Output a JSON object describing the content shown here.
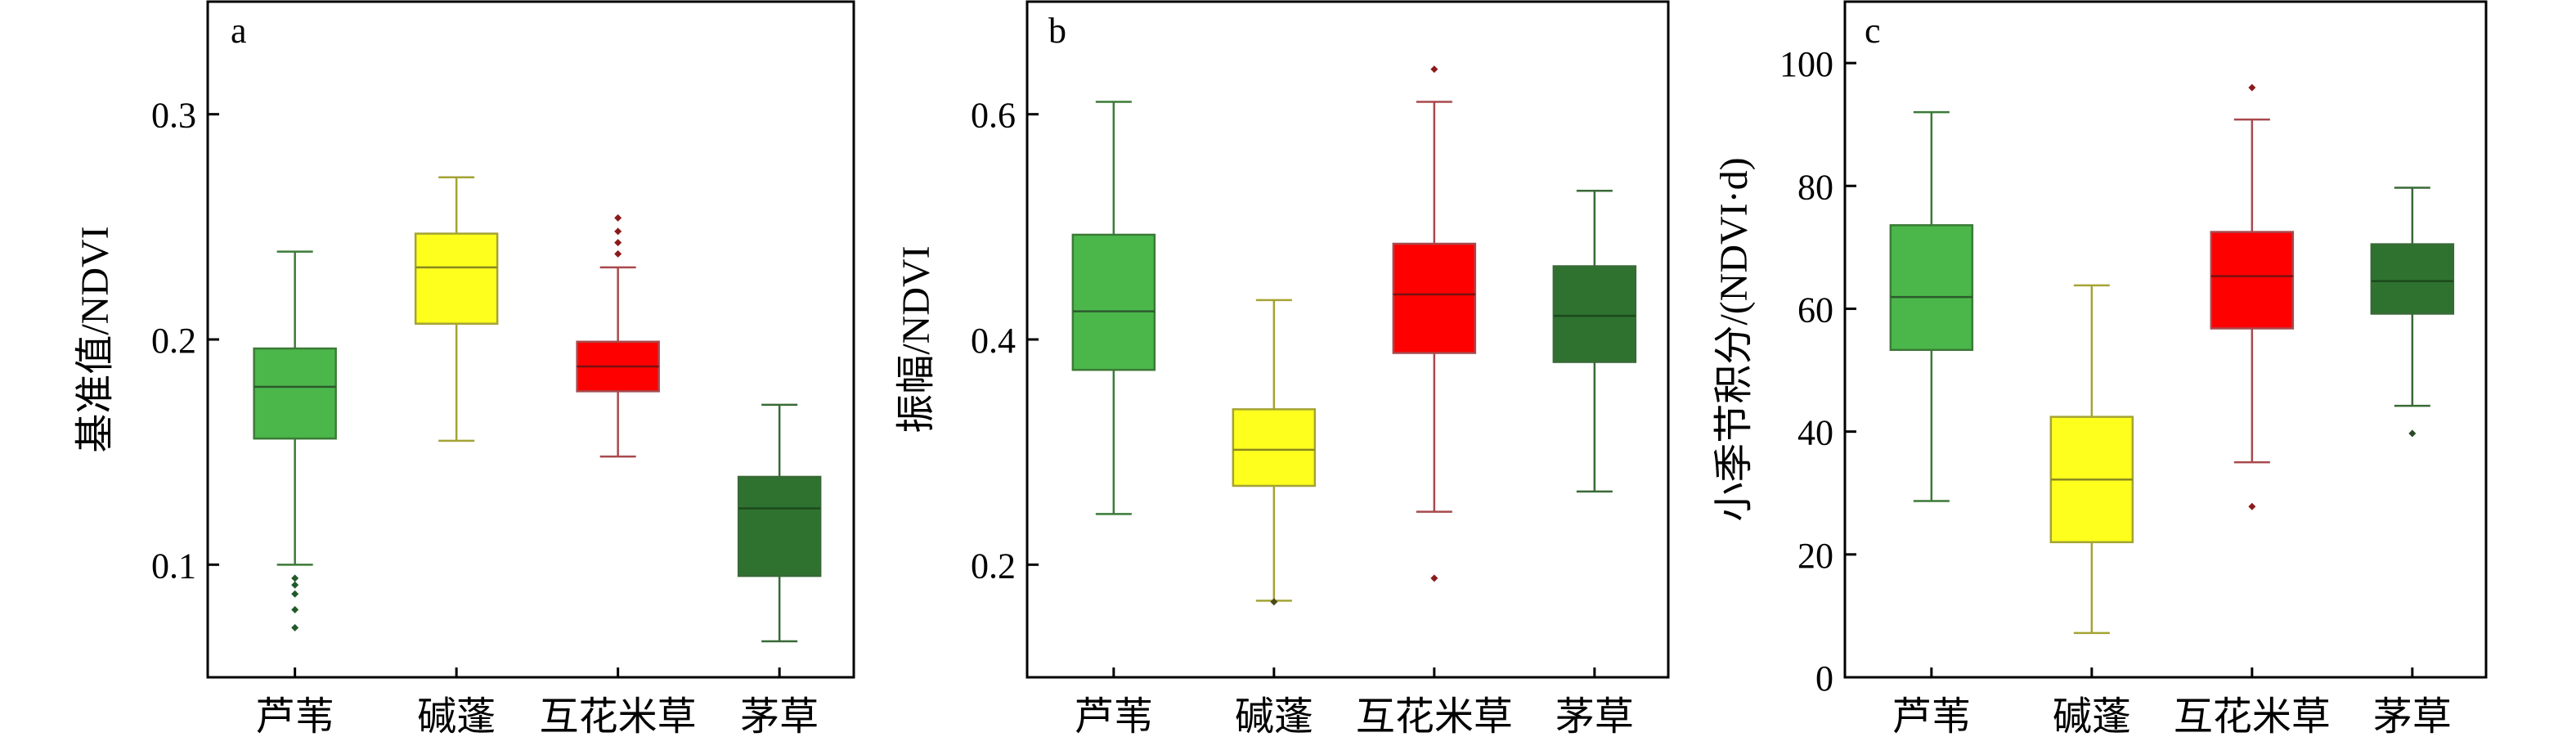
{
  "chart_data": [
    {
      "panel": "a",
      "type": "box",
      "ylabel": "基准值/NDVI",
      "ylim": [
        0.05,
        0.35
      ],
      "yticks": [
        0.1,
        0.2,
        0.3
      ],
      "categories": [
        "芦苇",
        "碱蓬",
        "互花米草",
        "茅草"
      ],
      "boxes": [
        {
          "q1": 0.156,
          "median": 0.179,
          "q3": 0.196,
          "whisker_low": 0.1,
          "whisker_high": 0.239,
          "outliers": [
            0.094,
            0.091,
            0.087,
            0.08,
            0.072
          ]
        },
        {
          "q1": 0.207,
          "median": 0.232,
          "q3": 0.247,
          "whisker_low": 0.155,
          "whisker_high": 0.272,
          "outliers": []
        },
        {
          "q1": 0.177,
          "median": 0.188,
          "q3": 0.199,
          "whisker_low": 0.148,
          "whisker_high": 0.232,
          "outliers": [
            0.238,
            0.243,
            0.248,
            0.254
          ]
        },
        {
          "q1": 0.095,
          "median": 0.125,
          "q3": 0.139,
          "whisker_low": 0.066,
          "whisker_high": 0.171,
          "outliers": []
        }
      ]
    },
    {
      "panel": "b",
      "type": "box",
      "ylabel": "振幅/NDVI",
      "ylim": [
        0.1,
        0.7
      ],
      "yticks": [
        0.2,
        0.4,
        0.6
      ],
      "categories": [
        "芦苇",
        "碱蓬",
        "互花米草",
        "茅草"
      ],
      "boxes": [
        {
          "q1": 0.373,
          "median": 0.425,
          "q3": 0.493,
          "whisker_low": 0.245,
          "whisker_high": 0.611,
          "outliers": []
        },
        {
          "q1": 0.27,
          "median": 0.302,
          "q3": 0.338,
          "whisker_low": 0.168,
          "whisker_high": 0.435,
          "outliers": [
            0.167
          ]
        },
        {
          "q1": 0.388,
          "median": 0.44,
          "q3": 0.485,
          "whisker_low": 0.247,
          "whisker_high": 0.611,
          "outliers": [
            0.188,
            0.64
          ]
        },
        {
          "q1": 0.38,
          "median": 0.421,
          "q3": 0.465,
          "whisker_low": 0.265,
          "whisker_high": 0.532,
          "outliers": []
        }
      ]
    },
    {
      "panel": "c",
      "type": "box",
      "ylabel": "小季节积分/(NDVI·d)",
      "ylim": [
        0,
        110
      ],
      "yticks": [
        0,
        20,
        40,
        60,
        80,
        100
      ],
      "categories": [
        "芦苇",
        "碱蓬",
        "互花米草",
        "茅草"
      ],
      "boxes": [
        {
          "q1": 53.3,
          "median": 61.9,
          "q3": 73.6,
          "whisker_low": 28.7,
          "whisker_high": 92.0,
          "outliers": []
        },
        {
          "q1": 22.0,
          "median": 32.2,
          "q3": 42.4,
          "whisker_low": 7.2,
          "whisker_high": 63.8,
          "outliers": []
        },
        {
          "q1": 56.8,
          "median": 65.3,
          "q3": 72.5,
          "whisker_low": 35.0,
          "whisker_high": 90.8,
          "outliers": [
            27.8,
            96.0
          ]
        },
        {
          "q1": 59.2,
          "median": 64.5,
          "q3": 70.5,
          "whisker_low": 44.2,
          "whisker_high": 79.7,
          "outliers": [
            39.7
          ]
        }
      ]
    }
  ],
  "colors": {
    "fills": [
      "#4bb74b",
      "#ffff1e",
      "#ff0000",
      "#2f7230"
    ],
    "lines": [
      "#3b7a37",
      "#a4a335",
      "#a8494d",
      "#386a36"
    ],
    "medians": [
      "#2d5a2d",
      "#8a8a20",
      "#7a1010",
      "#1c4a1c"
    ],
    "outliers": [
      "#215a2a",
      "#4a4a1a",
      "#8b1a1a",
      "#2a4a2a"
    ]
  }
}
